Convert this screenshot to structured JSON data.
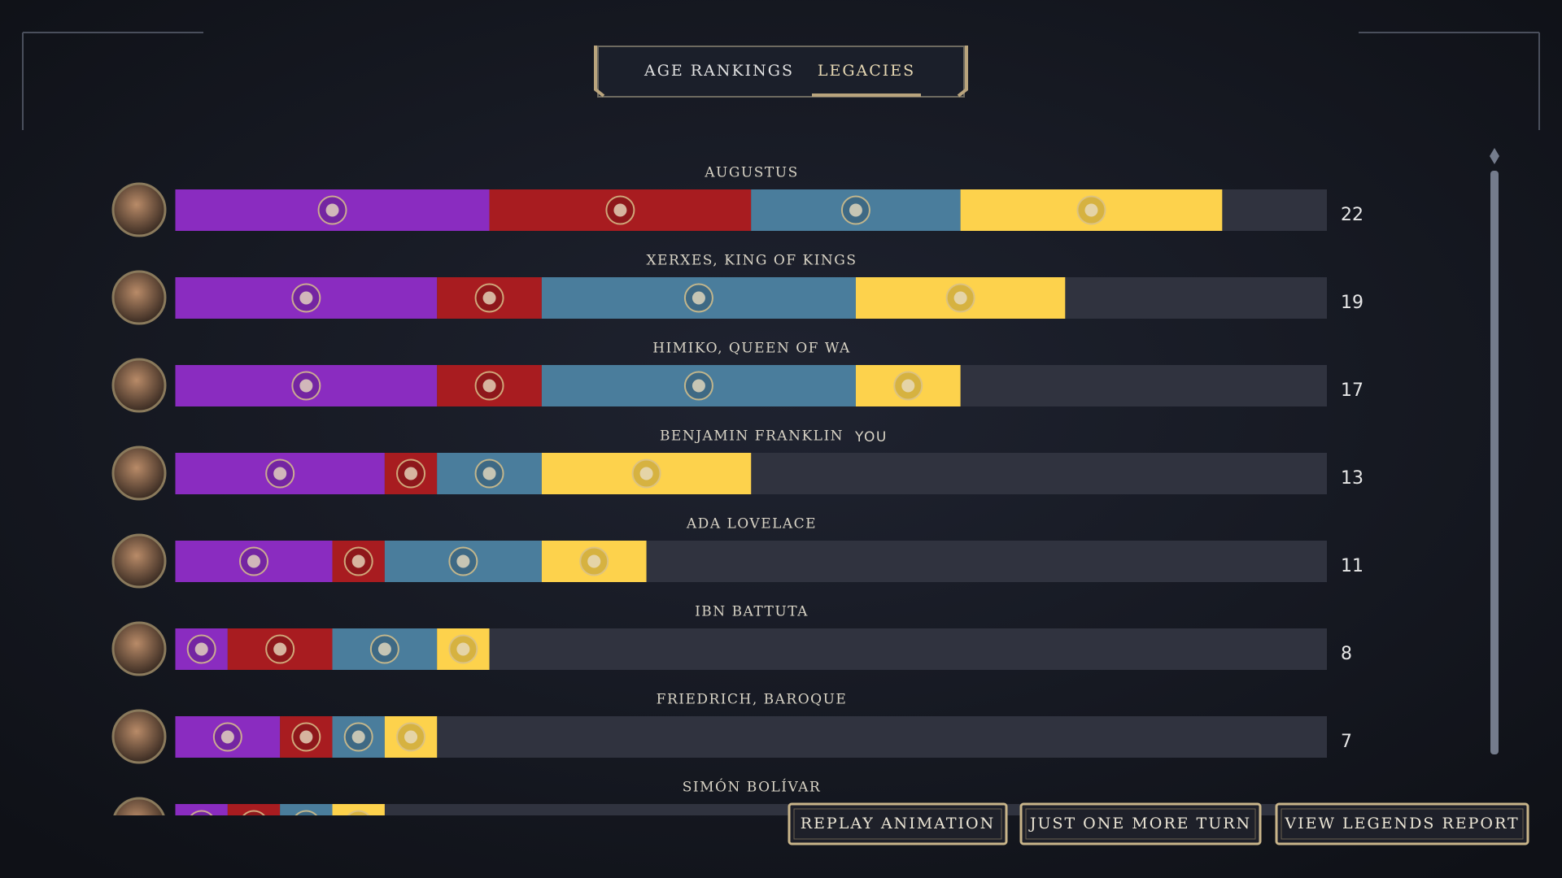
{
  "tabs": [
    "AGE RANKINGS",
    "LEGACIES"
  ],
  "active_tab": 1,
  "legacy_colors": [
    "#8a2cc0",
    "#a81c20",
    "#4a7d9c",
    "#fdd24c"
  ],
  "players": [
    {
      "name": "AUGUSTUS",
      "score": 22,
      "legacies": [
        6,
        5,
        4,
        5
      ]
    },
    {
      "name": "XERXES, KING OF KINGS",
      "score": 19,
      "legacies": [
        5,
        2,
        6,
        4
      ]
    },
    {
      "name": "HIMIKO, QUEEN OF WA",
      "score": 17,
      "legacies": [
        5,
        2,
        6,
        2
      ]
    },
    {
      "name": "BENJAMIN FRANKLIN",
      "tag": "YOU",
      "score": 13,
      "legacies": [
        4,
        1,
        2,
        4
      ]
    },
    {
      "name": "ADA LOVELACE",
      "score": 11,
      "legacies": [
        3,
        1,
        3,
        2
      ]
    },
    {
      "name": "IBN BATTUTA",
      "score": 8,
      "legacies": [
        1,
        2,
        2,
        1
      ]
    },
    {
      "name": "FRIEDRICH, BAROQUE",
      "score": 7,
      "legacies": [
        2,
        1,
        1,
        1
      ]
    },
    {
      "name": "SIMÓN BOLÍVAR",
      "score": null,
      "legacies": [
        1,
        1,
        1,
        1
      ]
    }
  ],
  "buttons": [
    "REPLAY ANIMATION",
    "JUST ONE MORE TURN",
    "VIEW LEGENDS REPORT"
  ]
}
